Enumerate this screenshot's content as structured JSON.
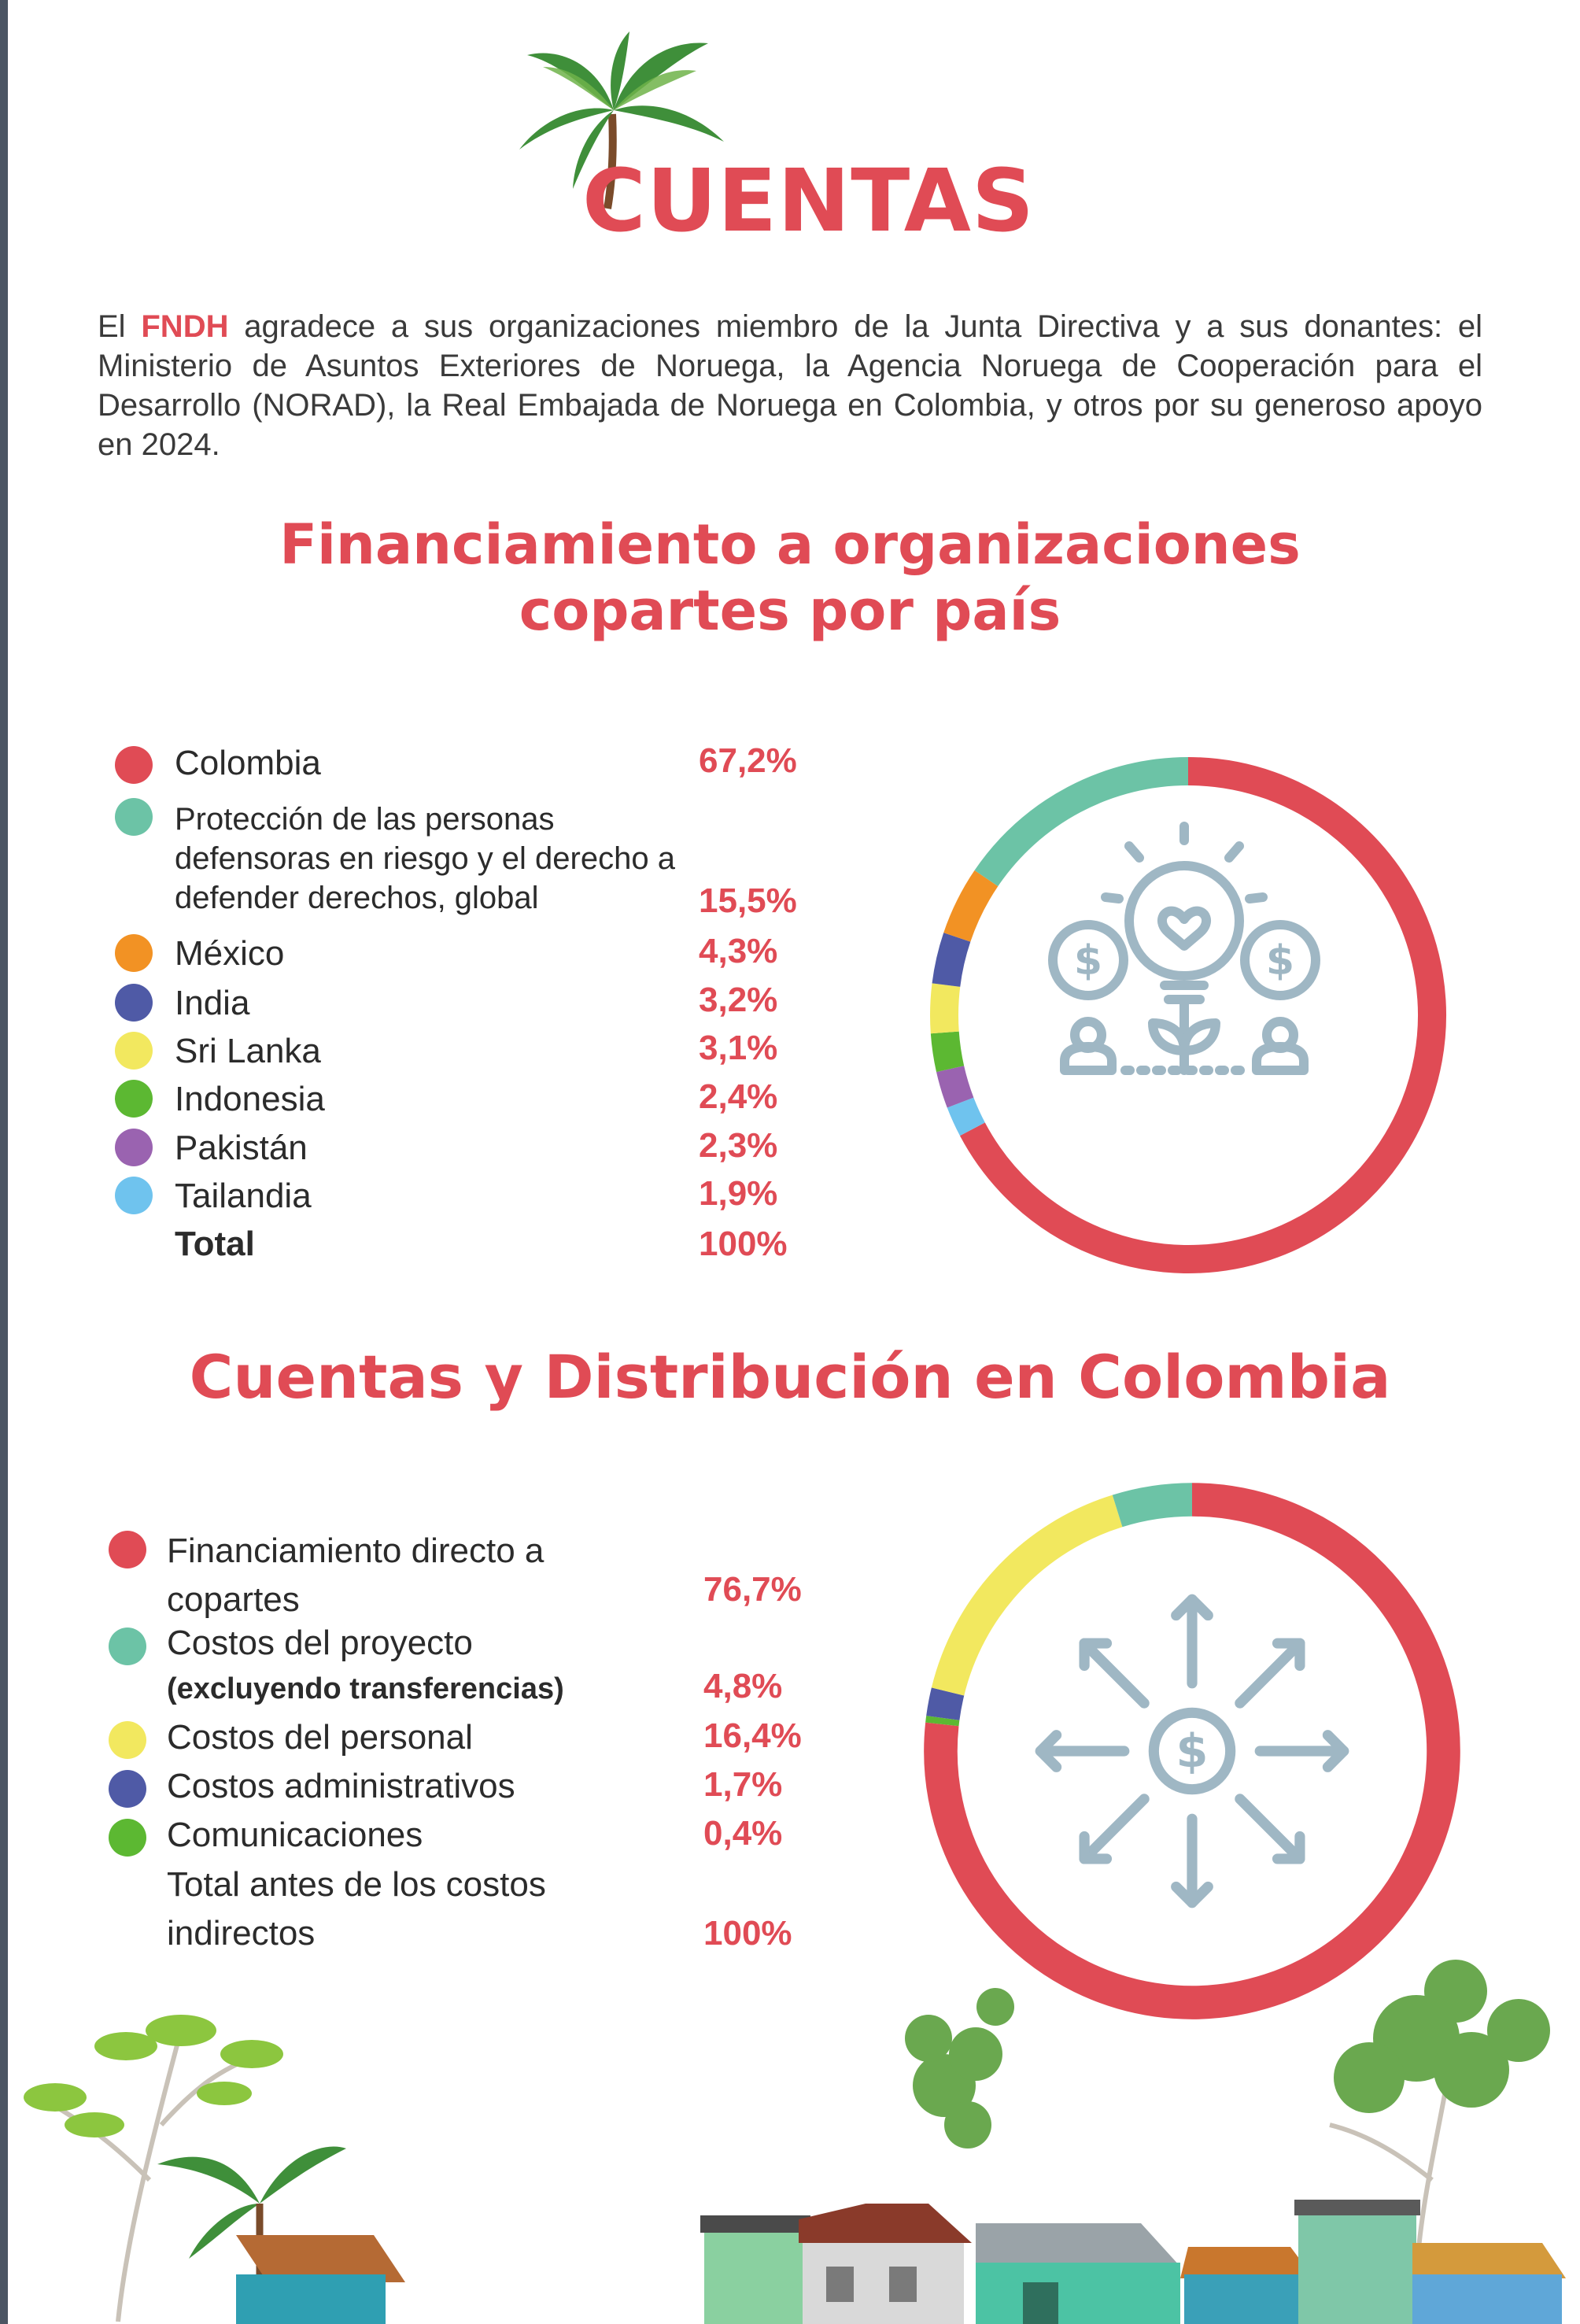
{
  "header": {
    "title": "CUENTAS",
    "intro_before": "El ",
    "intro_highlight": "FNDH",
    "intro_after": " agradece a sus organizaciones miembro de la Junta Directiva y a sus donantes: el Ministerio de Asuntos Exteriores de Noruega, la Agencia Noruega de Cooperación para el Desarrollo (NORAD), la Real Embajada de Noruega en Colombia, y otros por su generoso apoyo en 2024."
  },
  "section1": {
    "title_line1": "Financiamiento a organizaciones",
    "title_line2": "copartes por país",
    "total_label": "Total",
    "total_value": "100%"
  },
  "section2": {
    "title": "Cuentas y Distribución en Colombia",
    "total_label_line1": "Total antes de los costos",
    "total_label_line2": "indirectos",
    "total_value": "100%"
  },
  "colors": {
    "accent": "#e04b55",
    "icon": "#9fb7c4"
  },
  "chart_data": [
    {
      "type": "pie",
      "title": "Financiamiento a organizaciones copartes por país",
      "categories": [
        "Colombia",
        "Protección de las personas defensoras en riesgo y el derecho a defender derechos, global",
        "México",
        "India",
        "Sri Lanka",
        "Indonesia",
        "Pakistán",
        "Tailandia"
      ],
      "values": [
        67.2,
        15.5,
        4.3,
        3.2,
        3.1,
        2.4,
        2.3,
        1.9
      ],
      "labels": [
        "67,2%",
        "15,5%",
        "4,3%",
        "3,2%",
        "3,1%",
        "2,4%",
        "2,3%",
        "1,9%"
      ],
      "colors": [
        "#e04b55",
        "#6cc3a6",
        "#f29224",
        "#4f5aa6",
        "#f2e85f",
        "#5cb832",
        "#9a63b0",
        "#6fc3ee"
      ],
      "center_icon": "lightbulb-growth-money-people-icon"
    },
    {
      "type": "pie",
      "title": "Cuentas y Distribución en Colombia",
      "categories": [
        "Financiamiento directo a copartes",
        "Costos del proyecto",
        "Costos del personal",
        "Costos administrativos",
        "Comunicaciones"
      ],
      "notes": [
        "",
        "(excluyendo transferencias)",
        "",
        "",
        ""
      ],
      "values": [
        76.7,
        4.8,
        16.4,
        1.7,
        0.4
      ],
      "labels": [
        "76,7%",
        "4,8%",
        "16,4%",
        "1,7%",
        "0,4%"
      ],
      "colors": [
        "#e04b55",
        "#6cc3a6",
        "#f2e85f",
        "#4f5aa6",
        "#5cb832"
      ],
      "center_icon": "money-distribution-arrows-icon"
    }
  ]
}
